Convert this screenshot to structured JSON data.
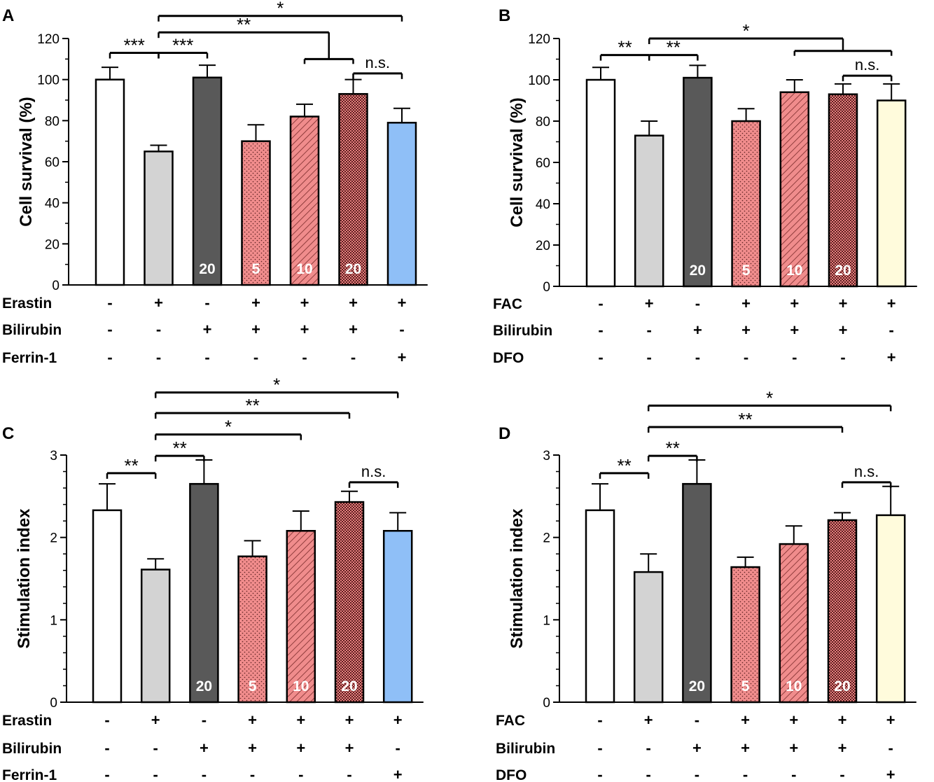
{
  "colors": {
    "control": "#ffffff",
    "treat": "#d3d3d3",
    "bilirubin20": "#595959",
    "pink": "#f08c8c",
    "dark_red": "#7a3a3a",
    "blue": "#8fbff7",
    "cream": "#fffbdc"
  },
  "chart_data": [
    {
      "panel": "A",
      "type": "bar",
      "ylabel": "Cell survival (%)",
      "ylim": [
        0,
        120
      ],
      "yticks": [
        0,
        20,
        40,
        60,
        80,
        100,
        120
      ],
      "values": [
        100,
        65,
        101,
        70,
        82,
        93,
        79
      ],
      "errors": [
        6,
        3,
        6,
        8,
        6,
        7,
        7
      ],
      "fills": [
        "control",
        "treat",
        "bilirubin20",
        "dots",
        "hatch",
        "check",
        "blue"
      ],
      "bar_labels": [
        "",
        "",
        "20",
        "5",
        "10",
        "20",
        ""
      ],
      "rows": [
        {
          "label": "Erastin",
          "signs": [
            "-",
            "+",
            "-",
            "+",
            "+",
            "+",
            "+"
          ]
        },
        {
          "label": "Bilirubin",
          "signs": [
            "-",
            "-",
            "+",
            "+",
            "+",
            "+",
            "-"
          ]
        },
        {
          "label": "Ferrin-1",
          "signs": [
            "-",
            "-",
            "-",
            "-",
            "-",
            "-",
            "+"
          ]
        }
      ],
      "sig": [
        {
          "type": "simple",
          "from": 0,
          "to": 1,
          "y": 113,
          "text": "***"
        },
        {
          "type": "simple",
          "from": 1,
          "to": 2,
          "y": 113,
          "text": "***"
        },
        {
          "type": "group",
          "from": 1,
          "to": [
            4,
            5
          ],
          "y": 123,
          "y2": 110,
          "text": "**"
        },
        {
          "type": "simple",
          "from": 5,
          "to": 6,
          "y": 103,
          "text": "n.s."
        },
        {
          "type": "simple",
          "from": 1,
          "to": 6,
          "y": 131,
          "text": "*"
        }
      ]
    },
    {
      "panel": "B",
      "type": "bar",
      "ylabel": "Cell survival (%)",
      "ylim": [
        0,
        120
      ],
      "yticks": [
        0,
        20,
        40,
        60,
        80,
        100,
        120
      ],
      "values": [
        100,
        73,
        101,
        80,
        94,
        93,
        90
      ],
      "errors": [
        6,
        7,
        6,
        6,
        6,
        5,
        8
      ],
      "fills": [
        "control",
        "treat",
        "bilirubin20",
        "dots",
        "hatch",
        "check",
        "cream"
      ],
      "bar_labels": [
        "",
        "",
        "20",
        "5",
        "10",
        "20",
        ""
      ],
      "rows": [
        {
          "label": "FAC",
          "signs": [
            "-",
            "+",
            "-",
            "+",
            "+",
            "+",
            "+"
          ]
        },
        {
          "label": "Bilirubin",
          "signs": [
            "-",
            "-",
            "+",
            "+",
            "+",
            "+",
            "-"
          ]
        },
        {
          "label": "DFO",
          "signs": [
            "-",
            "-",
            "-",
            "-",
            "-",
            "-",
            "+"
          ]
        }
      ],
      "sig": [
        {
          "type": "simple",
          "from": 0,
          "to": 1,
          "y": 112,
          "text": "**"
        },
        {
          "type": "simple",
          "from": 1,
          "to": 2,
          "y": 112,
          "text": "**"
        },
        {
          "type": "group",
          "from": 1,
          "to": [
            4,
            6
          ],
          "y": 120,
          "y2": 114,
          "text": "*"
        },
        {
          "type": "simple",
          "from": 5,
          "to": 6,
          "y": 102,
          "text": "n.s."
        }
      ]
    },
    {
      "panel": "C",
      "type": "bar",
      "ylabel": "Stimulation index",
      "ylim": [
        0,
        3
      ],
      "yticks": [
        0,
        1,
        2,
        3
      ],
      "values": [
        2.33,
        1.61,
        2.65,
        1.77,
        2.08,
        2.43,
        2.08
      ],
      "errors": [
        0.32,
        0.13,
        0.29,
        0.19,
        0.24,
        0.13,
        0.22
      ],
      "fills": [
        "control",
        "treat",
        "bilirubin20",
        "dots",
        "hatch",
        "check",
        "blue"
      ],
      "bar_labels": [
        "",
        "",
        "20",
        "5",
        "10",
        "20",
        ""
      ],
      "rows": [
        {
          "label": "Erastin",
          "signs": [
            "-",
            "+",
            "-",
            "+",
            "+",
            "+",
            "+"
          ]
        },
        {
          "label": "Bilirubin",
          "signs": [
            "-",
            "-",
            "+",
            "+",
            "+",
            "+",
            "-"
          ]
        },
        {
          "label": "Ferrin-1",
          "signs": [
            "-",
            "-",
            "-",
            "-",
            "-",
            "-",
            "+"
          ]
        }
      ],
      "sig": [
        {
          "type": "simple",
          "from": 0,
          "to": 1,
          "y": 2.78,
          "text": "**"
        },
        {
          "type": "simple",
          "from": 1,
          "to": 2,
          "y": 2.99,
          "text": "**"
        },
        {
          "type": "simple",
          "from": 1,
          "to": 4,
          "y": 3.25,
          "text": "*"
        },
        {
          "type": "simple",
          "from": 5,
          "to": 6,
          "y": 2.67,
          "text": "n.s."
        },
        {
          "type": "simple",
          "from": 1,
          "to": 5,
          "y": 3.51,
          "text": "**"
        },
        {
          "type": "simple",
          "from": 1,
          "to": 6,
          "y": 3.76,
          "text": "*"
        }
      ]
    },
    {
      "panel": "D",
      "type": "bar",
      "ylabel": "Stimulation index",
      "ylim": [
        0,
        3
      ],
      "yticks": [
        0,
        1,
        2,
        3
      ],
      "values": [
        2.33,
        1.58,
        2.65,
        1.64,
        1.92,
        2.21,
        2.27
      ],
      "errors": [
        0.32,
        0.22,
        0.29,
        0.12,
        0.22,
        0.09,
        0.35
      ],
      "fills": [
        "control",
        "treat",
        "bilirubin20",
        "dots",
        "hatch",
        "check",
        "cream"
      ],
      "bar_labels": [
        "",
        "",
        "20",
        "5",
        "10",
        "20",
        ""
      ],
      "rows": [
        {
          "label": "FAC",
          "signs": [
            "-",
            "+",
            "-",
            "+",
            "+",
            "+",
            "+"
          ]
        },
        {
          "label": "Bilirubin",
          "signs": [
            "-",
            "-",
            "+",
            "+",
            "+",
            "+",
            "-"
          ]
        },
        {
          "label": "DFO",
          "signs": [
            "-",
            "-",
            "-",
            "-",
            "-",
            "-",
            "+"
          ]
        }
      ],
      "sig": [
        {
          "type": "simple",
          "from": 0,
          "to": 1,
          "y": 2.78,
          "text": "**"
        },
        {
          "type": "simple",
          "from": 1,
          "to": 2,
          "y": 2.99,
          "text": "**"
        },
        {
          "type": "simple",
          "from": 5,
          "to": 6,
          "y": 2.67,
          "text": "n.s."
        },
        {
          "type": "simple",
          "from": 1,
          "to": 5,
          "y": 3.34,
          "text": "**"
        },
        {
          "type": "simple",
          "from": 1,
          "to": 6,
          "y": 3.6,
          "text": "*"
        }
      ]
    }
  ]
}
